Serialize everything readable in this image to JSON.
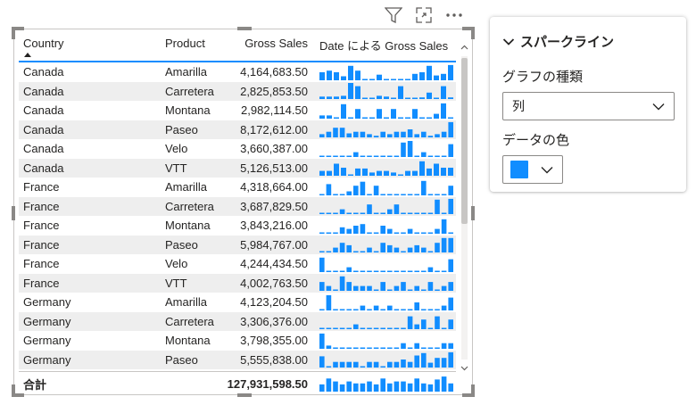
{
  "header_icons": [
    "filter-icon",
    "focus-mode-icon",
    "more-options-icon"
  ],
  "table": {
    "columns": [
      "Country",
      "Product",
      "Gross Sales",
      "Date による Gross Sales"
    ],
    "rows": [
      {
        "country": "Canada",
        "product": "Amarilla",
        "sales": "4,164,683.50",
        "spark": [
          0.5,
          0.6,
          0.5,
          0.25,
          0.9,
          0.6,
          0.05,
          0.05,
          0.35,
          0.05,
          0.05,
          0.05,
          0.05,
          0.4,
          0.5,
          0.9,
          0.3,
          0.4,
          0.95
        ]
      },
      {
        "country": "Canada",
        "product": "Carretera",
        "sales": "2,825,853.50",
        "spark": [
          0.15,
          0.15,
          0.15,
          0.2,
          1.0,
          0.8,
          0.05,
          0.05,
          0.2,
          0.15,
          0.05,
          0.8,
          0.05,
          0.05,
          0.1,
          0.4,
          0.05,
          0.8,
          0.1
        ]
      },
      {
        "country": "Canada",
        "product": "Montana",
        "sales": "2,982,114.50",
        "spark": [
          0.2,
          0.2,
          0.05,
          0.9,
          0.05,
          0.6,
          0.05,
          0.05,
          0.6,
          0.05,
          0.6,
          0.05,
          0.05,
          0.6,
          0.05,
          0.05,
          0.3,
          0.95,
          0.05
        ]
      },
      {
        "country": "Canada",
        "product": "Paseo",
        "sales": "8,172,612.00",
        "spark": [
          0.2,
          0.35,
          0.6,
          0.6,
          0.25,
          0.35,
          0.35,
          0.2,
          0.1,
          0.35,
          0.2,
          0.35,
          0.35,
          0.5,
          0.2,
          0.35,
          0.1,
          0.2,
          0.35,
          0.95
        ]
      },
      {
        "country": "Canada",
        "product": "Velo",
        "sales": "3,660,387.00",
        "spark": [
          0.05,
          0.05,
          0.05,
          0.05,
          0.05,
          0.3,
          0.05,
          0.05,
          0.05,
          0.05,
          0.05,
          0.05,
          0.9,
          1.0,
          0.05,
          0.3,
          0.05,
          0.05,
          0.05,
          0.8
        ]
      },
      {
        "country": "Canada",
        "product": "VTT",
        "sales": "5,126,513.00",
        "spark": [
          0.3,
          0.3,
          0.75,
          0.5,
          0.05,
          0.45,
          0.45,
          0.2,
          0.3,
          0.3,
          0.2,
          0.05,
          0.3,
          0.3,
          0.9,
          0.45,
          0.75,
          0.5,
          0.5
        ]
      },
      {
        "country": "France",
        "product": "Amarilla",
        "sales": "4,318,664.00",
        "spark": [
          0.05,
          0.7,
          0.05,
          0.05,
          0.25,
          0.6,
          0.85,
          0.05,
          0.6,
          0.05,
          0.05,
          0.05,
          0.05,
          0.05,
          0.05,
          0.9,
          0.05,
          0.05,
          0.05,
          0.6
        ]
      },
      {
        "country": "France",
        "product": "Carretera",
        "sales": "3,687,829.50",
        "spark": [
          0.05,
          0.05,
          0.05,
          0.3,
          0.05,
          0.05,
          0.05,
          0.6,
          0.05,
          0.05,
          0.3,
          0.6,
          0.05,
          0.05,
          0.05,
          0.05,
          0.05,
          0.9,
          0.05,
          0.95
        ]
      },
      {
        "country": "France",
        "product": "Montana",
        "sales": "3,843,216.00",
        "spark": [
          0.05,
          0.05,
          0.05,
          0.4,
          0.3,
          0.5,
          0.6,
          0.05,
          0.05,
          0.5,
          0.3,
          0.05,
          0.05,
          0.3,
          0.05,
          0.05,
          0.05,
          0.3,
          0.9,
          0.05
        ]
      },
      {
        "country": "France",
        "product": "Paseo",
        "sales": "5,984,767.00",
        "spark": [
          0.05,
          0.05,
          0.3,
          0.6,
          0.45,
          0.05,
          0.05,
          0.3,
          0.05,
          0.6,
          0.45,
          0.3,
          0.05,
          0.3,
          0.45,
          0.3,
          0.05,
          0.6,
          0.9,
          0.9
        ]
      },
      {
        "country": "France",
        "product": "Velo",
        "sales": "4,244,434.50",
        "spark": [
          0.9,
          0.05,
          0.05,
          0.05,
          0.3,
          0.05,
          0.05,
          0.05,
          0.05,
          0.05,
          0.05,
          0.05,
          0.05,
          0.05,
          0.05,
          0.05,
          0.3,
          0.05,
          0.05,
          0.8
        ]
      },
      {
        "country": "France",
        "product": "VTT",
        "sales": "4,002,763.50",
        "spark": [
          0.55,
          0.3,
          0.05,
          0.9,
          0.55,
          0.3,
          0.3,
          0.3,
          0.05,
          0.55,
          0.05,
          0.3,
          0.55,
          0.05,
          0.3,
          0.05,
          0.55,
          0.05,
          0.3,
          0.55
        ]
      },
      {
        "country": "Germany",
        "product": "Amarilla",
        "sales": "4,123,204.50",
        "spark": [
          0.05,
          0.95,
          0.05,
          0.05,
          0.05,
          0.05,
          0.3,
          0.05,
          0.3,
          0.05,
          0.3,
          0.05,
          0.05,
          0.05,
          0.5,
          0.05,
          0.05,
          0.05,
          0.3,
          0.8
        ]
      },
      {
        "country": "Germany",
        "product": "Carretera",
        "sales": "3,306,376.00",
        "spark": [
          0.05,
          0.05,
          0.05,
          0.05,
          0.05,
          0.3,
          0.05,
          0.05,
          0.05,
          0.05,
          0.05,
          0.05,
          0.05,
          0.8,
          0.3,
          0.6,
          0.05,
          0.8,
          0.05,
          0.6
        ]
      },
      {
        "country": "Germany",
        "product": "Montana",
        "sales": "3,798,355.00",
        "spark": [
          0.95,
          0.2,
          0.05,
          0.05,
          0.05,
          0.05,
          0.05,
          0.05,
          0.05,
          0.05,
          0.05,
          0.05,
          0.35,
          0.05,
          0.35,
          0.05,
          0.05,
          0.05,
          0.35,
          0.35
        ]
      },
      {
        "country": "Germany",
        "product": "Paseo",
        "sales": "5,555,838.00",
        "spark": [
          0.7,
          0.05,
          0.35,
          0.35,
          0.35,
          0.35,
          0.05,
          0.35,
          0.35,
          0.05,
          0.35,
          0.35,
          0.5,
          0.35,
          0.75,
          0.9,
          0.3,
          0.6,
          0.6,
          0.95
        ]
      }
    ],
    "total": {
      "label": "合計",
      "sales": "127,931,598.50",
      "spark": [
        0.55,
        0.85,
        0.7,
        0.55,
        0.7,
        0.6,
        0.6,
        0.7,
        0.55,
        0.85,
        0.6,
        0.7,
        0.7,
        0.6,
        0.85,
        0.6,
        0.55,
        0.8,
        0.95,
        0.6
      ]
    }
  },
  "format_pane": {
    "section_title": "スパークライン",
    "chart_type_label": "グラフの種類",
    "chart_type_value": "列",
    "data_color_label": "データの色",
    "data_color": "#118dff"
  }
}
